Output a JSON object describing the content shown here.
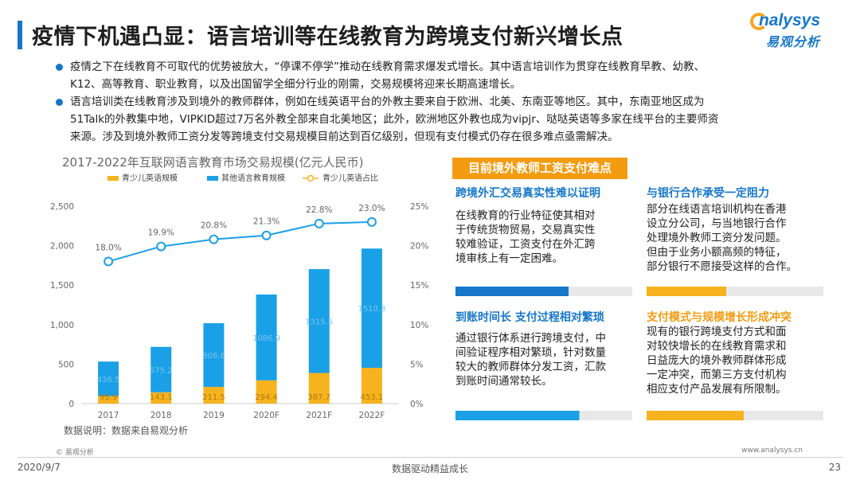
{
  "header": {
    "title": "疫情下机遇凸显：语言培训等在线教育为跨境支付新兴增长点",
    "logo_en": "nalysys",
    "logo_cn": "易观分析"
  },
  "bullets": [
    {
      "lines": [
        "疫情之下在线教育不可取代的优势被放大，“停课不停学”推动在线教育需求爆发式增长。其中语言培训作为贯穿在线教育早教、幼教、",
        "K12、高等教育、职业教育，以及出国留学全细分行业的刚需，交易规模将迎来长期高速增长。"
      ]
    },
    {
      "lines": [
        "语言培训类在线教育涉及到境外的教师群体，例如在线英语平台的外教主要来自于欧洲、北美、东南亚等地区。其中，东南亚地区成为",
        "51Talk的外教集中地，VIPKID超过7万名外教全部来自北美地区；此外，欧洲地区外教也成为vipjr、哒哒英语等多家在线平台的主要师资",
        "来源。涉及到境外教师工资分发等跨境支付交易规模目前达到百亿级别，但现有支付模式仍存在很多难点亟需解决。"
      ]
    }
  ],
  "chart_data": {
    "type": "bar",
    "title": "2017-2022年互联网语言教育市场交易规模(亿元人民币)",
    "categories": [
      "2017",
      "2018",
      "2019",
      "2020F",
      "2021F",
      "2022F"
    ],
    "series": [
      {
        "name": "青少儿英语规模",
        "kind": "stacked-bar",
        "color": "#f6b31e",
        "values": [
          95.9,
          143.1,
          211.5,
          294.4,
          387.7,
          453.1
        ]
      },
      {
        "name": "其他语言教育规模",
        "kind": "stacked-bar",
        "color": "#1aa0e6",
        "values": [
          436.5,
          575.2,
          806.8,
          1086.9,
          1315.5,
          1510.3
        ]
      },
      {
        "name": "青少儿英语占比",
        "kind": "line",
        "axis": "right",
        "color": "#1aa0e6",
        "values": [
          18.0,
          19.9,
          20.8,
          21.3,
          22.8,
          23.0
        ],
        "labels": [
          "18.0%",
          "19.9%",
          "20.8%",
          "21.3%",
          "22.8%",
          "23.0%"
        ]
      }
    ],
    "bar_labels_bottom": [
      "95.9",
      "143.1",
      "211.5",
      "294.4",
      "387.7",
      "453.1"
    ],
    "bar_labels_top": [
      "436.5",
      "575.2",
      "806.8",
      "1086.9",
      "1315.5",
      "1510.3"
    ],
    "ylim_left": [
      0,
      2500
    ],
    "yticks_left": [
      "0",
      "500",
      "1,000",
      "1,500",
      "2,000",
      "2,500"
    ],
    "ylim_right": [
      0,
      25
    ],
    "yticks_right": [
      "0%",
      "5%",
      "10%",
      "15%",
      "20%",
      "25%"
    ],
    "grid": false,
    "legend_position": "top"
  },
  "data_note": "数据说明：数据来自易观分析",
  "panel": {
    "header": "目前境外教师工资支付难点",
    "cards": [
      {
        "title": "跨境外汇交易真实性难以证明",
        "lines": [
          "在线教育的行业特征使其相对",
          "于传统货物贸易，交易真实性",
          "较难验证，工资支付在外汇跨",
          "境审核上有一定困难。"
        ]
      },
      {
        "title": "与银行合作承受一定阻力",
        "lines": [
          "部分在线语言培训机构在香港",
          "设立分公司，与当地银行合作",
          "处理境外教师工资分发问题。",
          "但由于业务小额高频的特征，",
          "部分银行不愿接受这样的合作。"
        ]
      },
      {
        "title": "到账时间长 支付过程相对繁琐",
        "lines": [
          "通过银行体系进行跨境支付，中",
          "间验证程序相对繁琐，针对数量",
          "较大的教师群体分发工资，汇款",
          "到账时间通常较长。"
        ]
      },
      {
        "title": "支付模式与规模增长形成冲突",
        "lines": [
          "现有的银行跨境支付方式和面",
          "对较快增长的在线教育需求和",
          "日益庞大的境外教师群体形成",
          "一定冲突，而第三方支付机构",
          "相应支付产品发展有所限制。"
        ]
      }
    ],
    "colors": {
      "blue": "#1677c9",
      "orange": "#f39c12",
      "light_blue": "#1aa0e6"
    }
  },
  "footer": {
    "copyright": "© 易观分析",
    "website": "www.analysys.cn",
    "date": "2020/9/7",
    "slogan": "数据驱动精益成长",
    "page": "23"
  }
}
